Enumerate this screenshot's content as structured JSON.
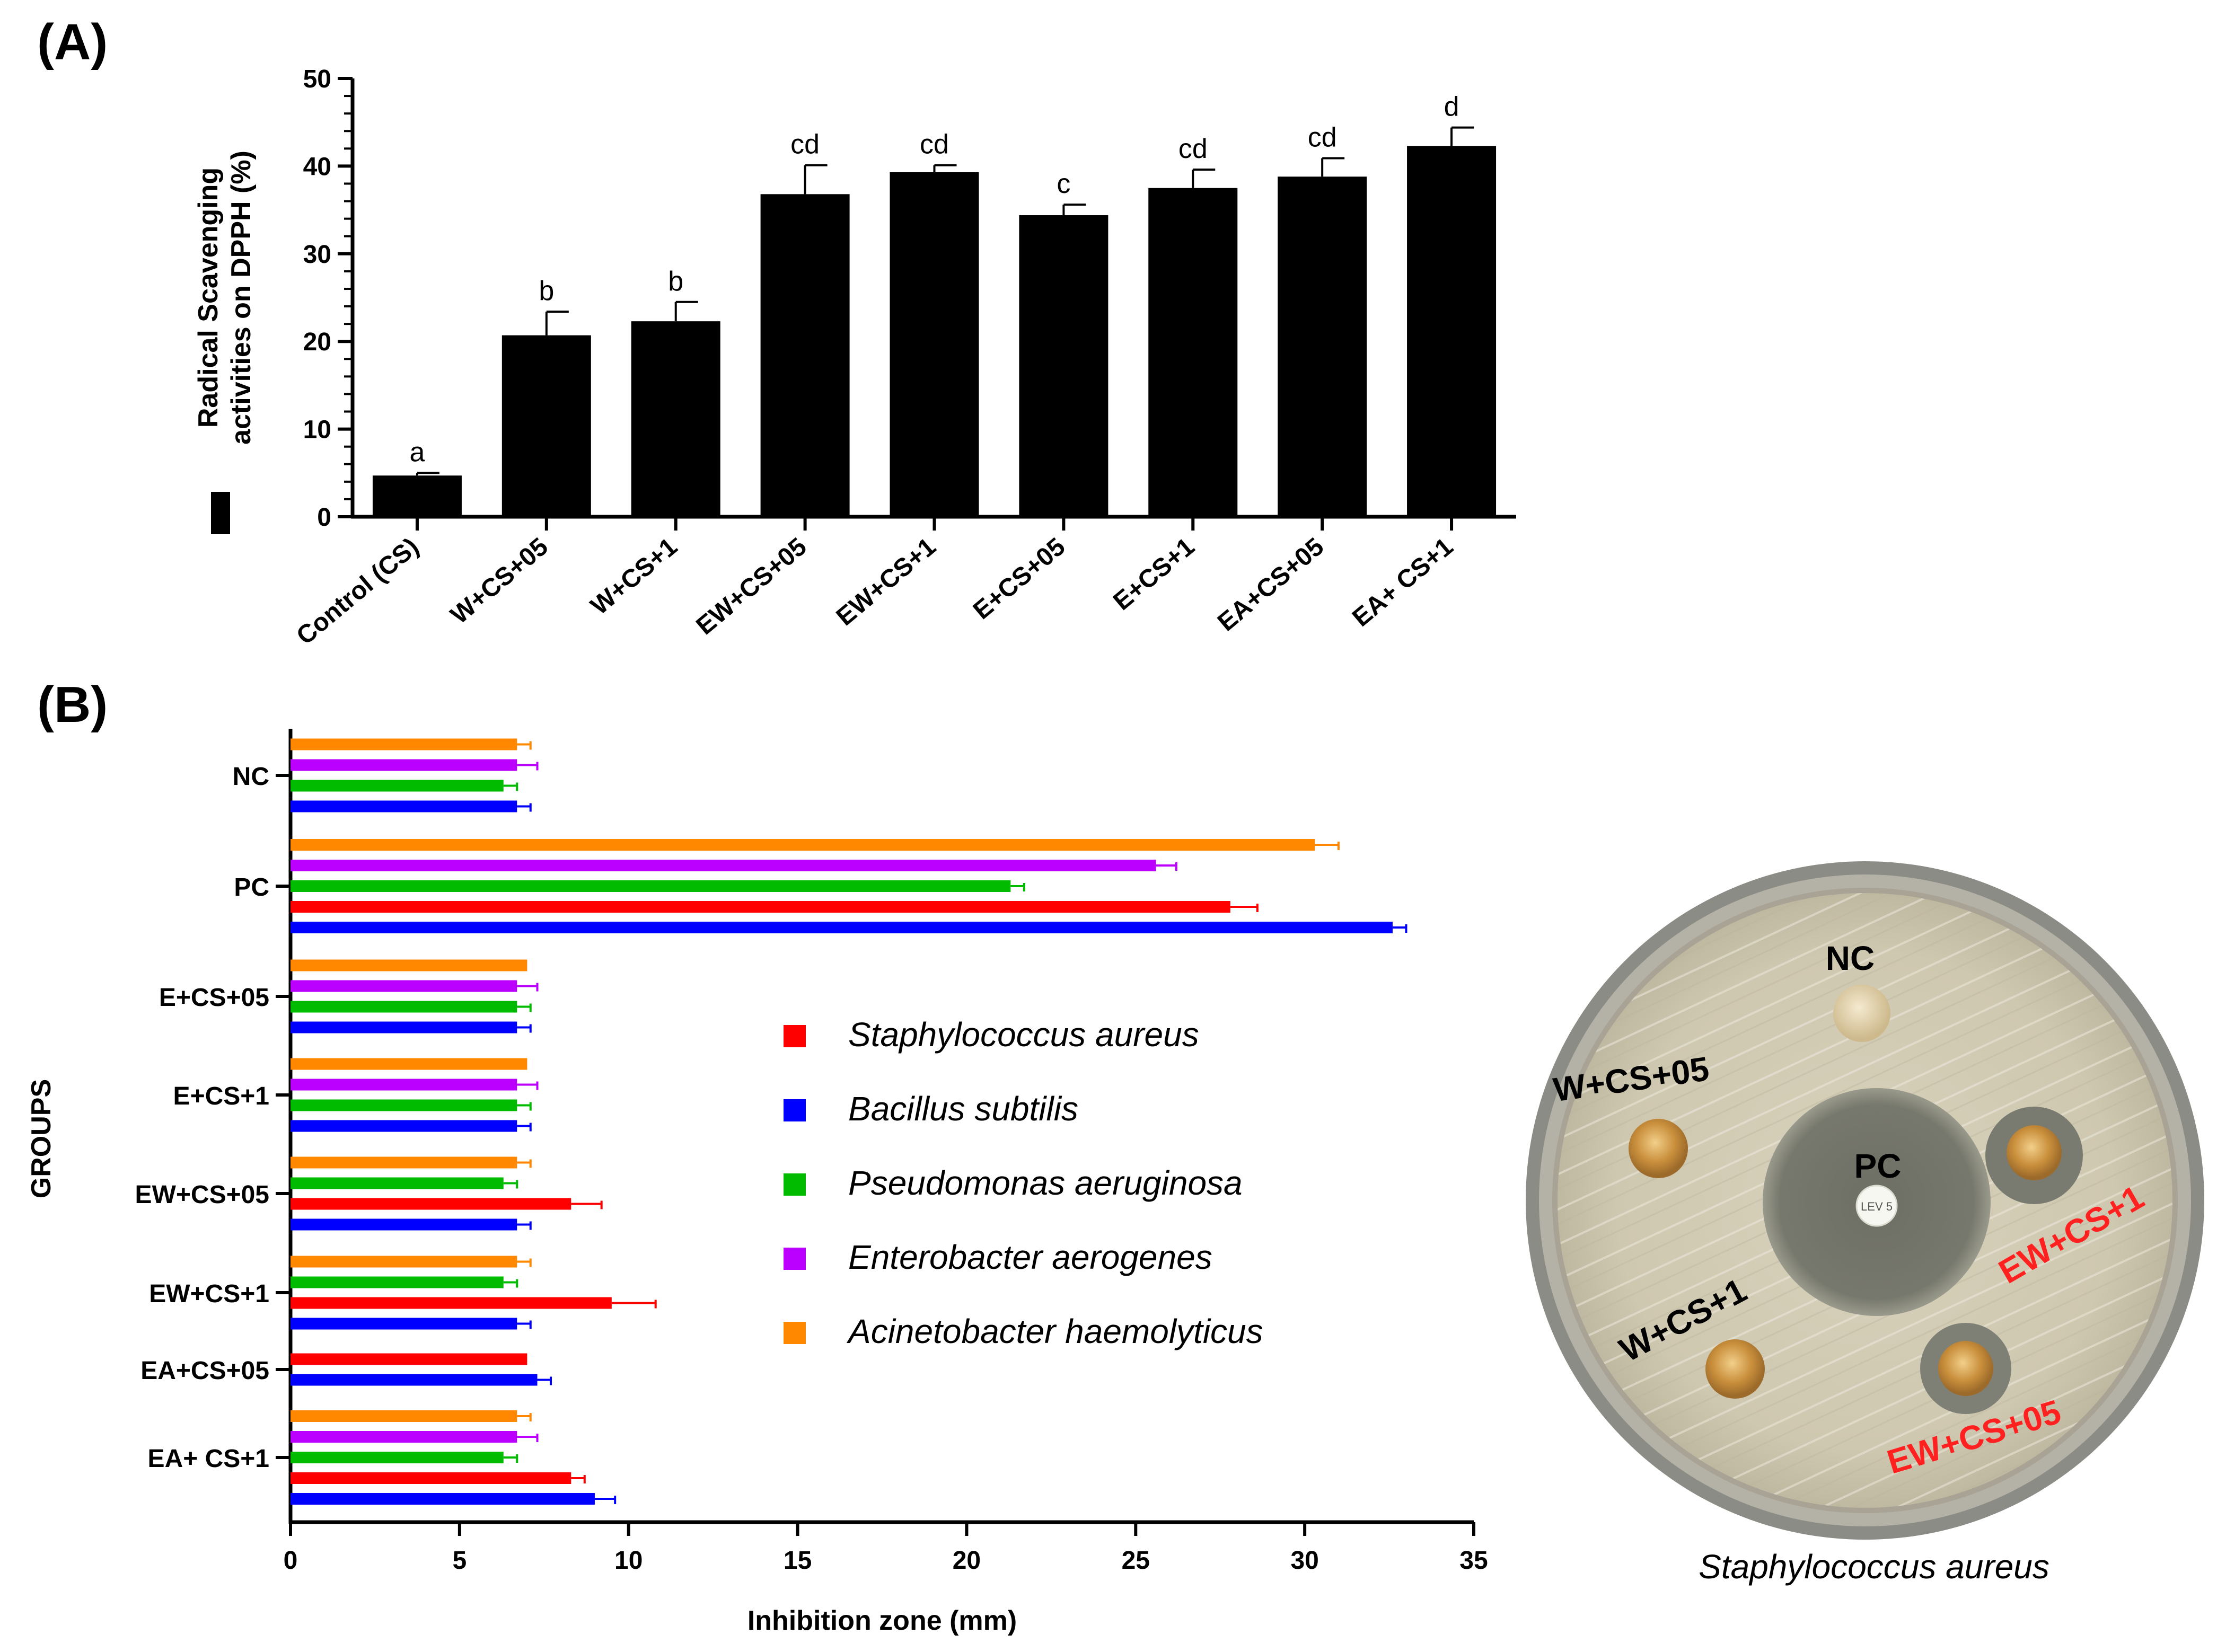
{
  "panel_a_label": "(A)",
  "panel_b_label": "(B)",
  "chart_data": [
    {
      "type": "bar",
      "orientation": "vertical",
      "categories": [
        "Control (CS)",
        "W+CS+05",
        "W+CS+1",
        "EW+CS+05",
        "EW+CS+1",
        "E+CS+05",
        "E+CS+1",
        "EA+CS+05",
        "EA+ CS+1"
      ],
      "values": [
        4.7,
        20.7,
        22.3,
        36.8,
        39.3,
        34.4,
        37.5,
        38.8,
        42.3
      ],
      "errors": [
        0.3,
        2.7,
        2.2,
        3.3,
        0.8,
        1.2,
        2.1,
        2.1,
        2.1
      ],
      "significance_letters": [
        "a",
        "b",
        "b",
        "cd",
        "cd",
        "c",
        "cd",
        "cd",
        "d"
      ],
      "ylabel_line1": "Radical Scavenging",
      "ylabel_line2": "activities on DPPH (%)",
      "ylim": [
        0,
        50
      ],
      "yticks": [
        0,
        10,
        20,
        30,
        40,
        50
      ],
      "legend_entries": [
        ""
      ],
      "bar_color": "#000000"
    },
    {
      "type": "bar",
      "orientation": "horizontal",
      "categories": [
        "NC",
        "PC",
        "E+CS+05",
        "E+CS+1",
        "EW+CS+05",
        "EW+CS+1",
        "EA+CS+05",
        "EA+ CS+1"
      ],
      "series": [
        {
          "name": "Staphylococcus aureus",
          "color": "#ff0000",
          "values": [
            null,
            27.8,
            null,
            null,
            8.3,
            9.5,
            7.0,
            8.3
          ],
          "errors": [
            null,
            0.8,
            null,
            null,
            0.9,
            1.3,
            0.0,
            0.4
          ]
        },
        {
          "name": "Bacillus subtilis",
          "color": "#0000ff",
          "values": [
            6.7,
            32.6,
            6.7,
            6.7,
            6.7,
            6.7,
            7.3,
            9.0
          ],
          "errors": [
            0.4,
            0.4,
            0.4,
            0.4,
            0.4,
            0.4,
            0.4,
            0.6
          ]
        },
        {
          "name": "Pseudomonas aeruginosa",
          "color": "#00bb00",
          "values": [
            6.3,
            21.3,
            6.7,
            6.7,
            6.3,
            6.3,
            null,
            6.3
          ],
          "errors": [
            0.4,
            0.4,
            0.4,
            0.4,
            0.4,
            0.4,
            null,
            0.4
          ]
        },
        {
          "name": "Enterobacter aerogenes",
          "color": "#bb00ff",
          "values": [
            6.7,
            25.6,
            6.7,
            6.7,
            null,
            null,
            null,
            6.7
          ],
          "errors": [
            0.6,
            0.6,
            0.6,
            0.6,
            null,
            null,
            null,
            0.6
          ]
        },
        {
          "name": "Acinetobacter haemolyticus",
          "color": "#ff8800",
          "values": [
            6.7,
            30.3,
            7.0,
            7.0,
            6.7,
            6.7,
            null,
            6.7
          ],
          "errors": [
            0.4,
            0.7,
            0.0,
            0.0,
            0.4,
            0.4,
            null,
            0.4
          ]
        }
      ],
      "xlabel": "Inhibition zone (mm)",
      "ylabel": "GROUPS",
      "xlim": [
        0,
        35
      ],
      "xticks": [
        0,
        5,
        10,
        15,
        20,
        25,
        30,
        35
      ],
      "legend_position": "center-right"
    }
  ],
  "petri_dish": {
    "labels": {
      "nc": "NC",
      "pc": "PC",
      "w_cs_05": "W+CS+05",
      "w_cs_1": "W+CS+1",
      "ew_cs_1": "EW+CS+1",
      "ew_cs_05": "EW+CS+05",
      "disc_text": "LEV 5"
    },
    "caption": "Staphylococcus aureus",
    "black_label_color": "#000000",
    "red_label_color": "#ff2020"
  }
}
